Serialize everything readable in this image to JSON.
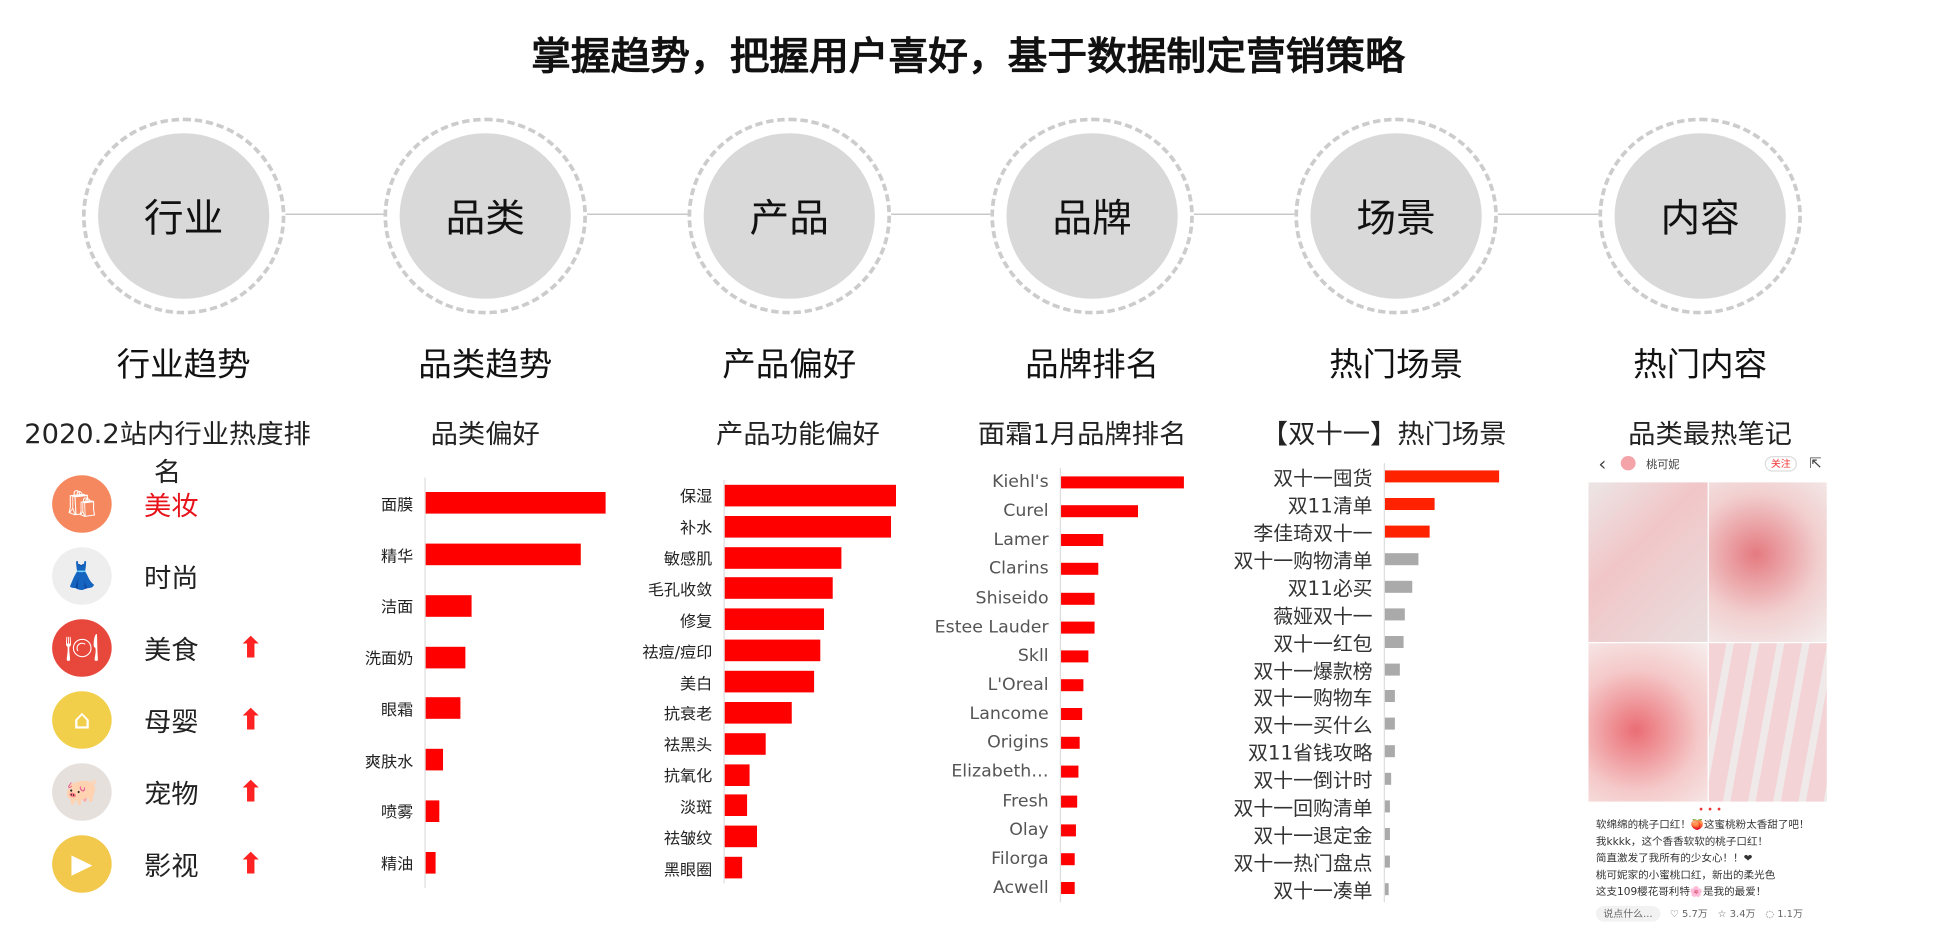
{
  "title": "掌握趋势，把握用户喜好，基于数据制定营销策略",
  "steps": [
    {
      "circle": "行业",
      "label": "行业趋势",
      "subtitle": "2020.2站内行业热度排名"
    },
    {
      "circle": "品类",
      "label": "品类趋势",
      "subtitle": "品类偏好"
    },
    {
      "circle": "产品",
      "label": "产品偏好",
      "subtitle": "产品功能偏好"
    },
    {
      "circle": "品牌",
      "label": "品牌排名",
      "subtitle": "面霜1月品牌排名"
    },
    {
      "circle": "场景",
      "label": "热门场景",
      "subtitle": "【双十一】热门场景"
    },
    {
      "circle": "内容",
      "label": "热门内容",
      "subtitle": "品类最热笔记"
    }
  ],
  "industries": [
    {
      "name": "美妆",
      "icon": "shopping-bag-icon",
      "color": "#f5885f",
      "highlight": true,
      "rising": false
    },
    {
      "name": "时尚",
      "icon": "dress-icon",
      "color": "#eeeeee",
      "highlight": false,
      "rising": false
    },
    {
      "name": "美食",
      "icon": "plate-icon",
      "color": "#e8473b",
      "highlight": false,
      "rising": true
    },
    {
      "name": "母婴",
      "icon": "house-icon",
      "color": "#f2cf4a",
      "highlight": false,
      "rising": true
    },
    {
      "name": "宠物",
      "icon": "pig-icon",
      "color": "#e6e0dc",
      "highlight": false,
      "rising": true
    },
    {
      "name": "影视",
      "icon": "tv-icon",
      "color": "#f2c94c",
      "highlight": false,
      "rising": true
    }
  ],
  "chart_data": [
    {
      "type": "bar",
      "orientation": "horizontal",
      "title": "品类偏好",
      "categories": [
        "面膜",
        "精华",
        "洁面",
        "洗面奶",
        "眼霜",
        "爽肤水",
        "喷雾",
        "精油"
      ],
      "values": [
        145,
        125,
        37,
        32,
        28,
        14,
        11,
        8
      ],
      "color": "#ff0000"
    },
    {
      "type": "bar",
      "orientation": "horizontal",
      "title": "产品功能偏好",
      "categories": [
        "保湿",
        "补水",
        "敏感肌",
        "毛孔收敛",
        "修复",
        "祛痘/痘印",
        "美白",
        "抗衰老",
        "祛黑头",
        "抗氧化",
        "淡斑",
        "祛皱纹",
        "黑眼圈"
      ],
      "values": [
        138,
        134,
        94,
        87,
        80,
        77,
        72,
        54,
        33,
        20,
        18,
        26,
        14
      ],
      "color": "#ff0000"
    },
    {
      "type": "bar",
      "orientation": "horizontal",
      "title": "面霜1月品牌排名",
      "categories": [
        "Kiehl's",
        "Curel",
        "Lamer",
        "Clarins",
        "Shiseido",
        "Estee Lauder",
        "Skll",
        "L'Oreal",
        "Lancome",
        "Origins",
        "Elizabeth…",
        "Fresh",
        "Olay",
        "Filorga",
        "Acwell"
      ],
      "values": [
        99,
        62,
        34,
        30,
        27,
        27,
        22,
        18,
        17,
        15,
        14,
        13,
        12,
        11,
        11
      ],
      "color": "#ff0000"
    },
    {
      "type": "bar",
      "orientation": "horizontal",
      "title": "【双十一】热门场景",
      "categories": [
        "双十一囤货",
        "双11清单",
        "李佳琦双十一",
        "双十一购物清单",
        "双11必买",
        "薇娅双十一",
        "双十一红包",
        "双十一爆款榜",
        "双十一购物车",
        "双十一买什么",
        "双11省钱攻略",
        "双十一倒计时",
        "双十一回购清单",
        "双十一退定金",
        "双十一热门盘点",
        "双十一凑单"
      ],
      "values": [
        92,
        40,
        36,
        27,
        22,
        16,
        15,
        12,
        8,
        8,
        8,
        5,
        4,
        4,
        4,
        3
      ],
      "colors": [
        "#ff2200",
        "#ff2200",
        "#ff2200",
        "#aaaaaa",
        "#aaaaaa",
        "#aaaaaa",
        "#aaaaaa",
        "#aaaaaa",
        "#aaaaaa",
        "#aaaaaa",
        "#aaaaaa",
        "#aaaaaa",
        "#aaaaaa",
        "#aaaaaa",
        "#aaaaaa",
        "#aaaaaa"
      ]
    }
  ],
  "note": {
    "account": "桃可妮",
    "follow": "关注",
    "lines": [
      "软绵绵的桃子口红！🍑这蜜桃粉太香甜了吧！",
      "我kkkk，这个香香软软的桃子口红！",
      "简直激发了我所有的少女心！！❤",
      "桃可妮家的小蜜桃口红，新出的柔光色",
      "这支109樱花哥利特🌸是我的最爱！"
    ],
    "comment_placeholder": "说点什么...",
    "likes": "5.7万",
    "stars": "3.4万",
    "comments": "1.1万"
  }
}
